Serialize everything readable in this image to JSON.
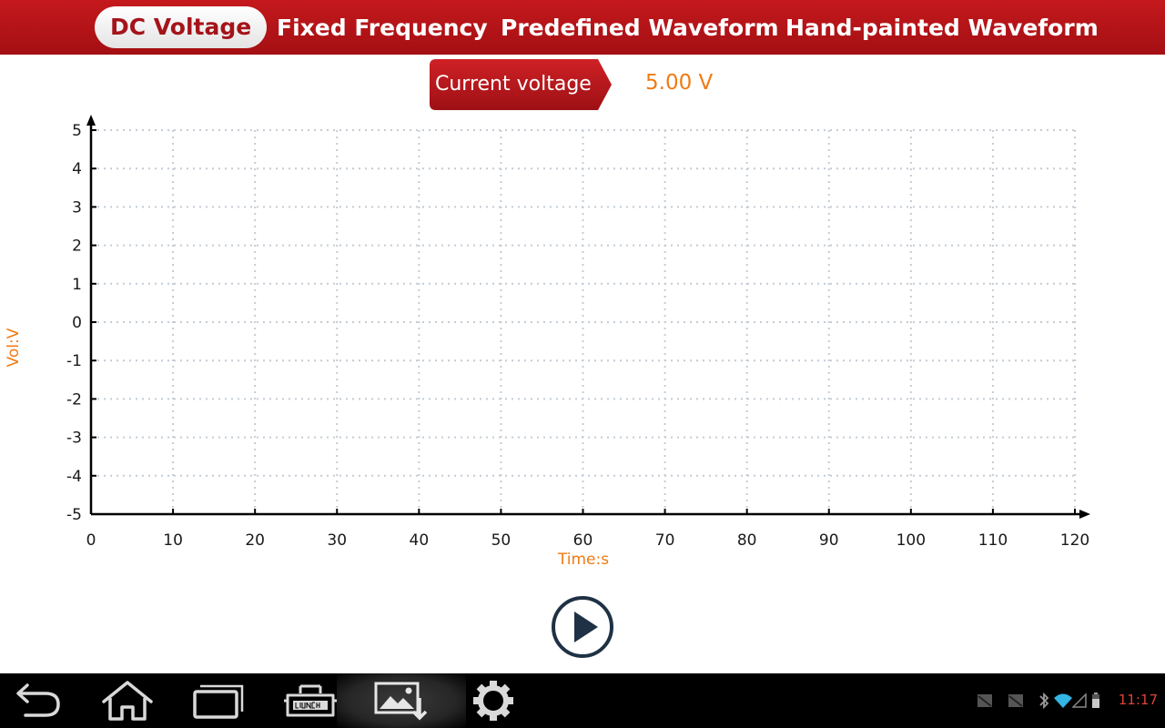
{
  "tabs": [
    {
      "label": "DC Voltage",
      "active": true
    },
    {
      "label": "Fixed Frequency",
      "active": false
    },
    {
      "label": "Predefined Waveform",
      "active": false
    },
    {
      "label": "Hand-painted Waveform",
      "active": false
    }
  ],
  "voltage": {
    "label": "Current voltage",
    "value": "5.00 V"
  },
  "chart_data": {
    "type": "line",
    "title": "",
    "xlabel": "Time:s",
    "ylabel": "Vol:V",
    "xlim": [
      0,
      120
    ],
    "ylim": [
      -5,
      5
    ],
    "x_ticks": [
      0,
      10,
      20,
      30,
      40,
      50,
      60,
      70,
      80,
      90,
      100,
      110,
      120
    ],
    "y_ticks": [
      5,
      4,
      3,
      2,
      1,
      0,
      -1,
      -2,
      -3,
      -4,
      -5
    ],
    "grid": true,
    "series": []
  },
  "controls": {
    "play_icon": "play-icon"
  },
  "system_bar": {
    "nav_icons": [
      "back-icon",
      "home-icon",
      "recent-apps-icon",
      "launch-icon",
      "screenshot-icon",
      "settings-icon"
    ],
    "time": "11:17"
  },
  "colors": {
    "brand_red": "#b5151a",
    "accent_orange": "#f07a14",
    "clock_red": "#e0413a"
  }
}
